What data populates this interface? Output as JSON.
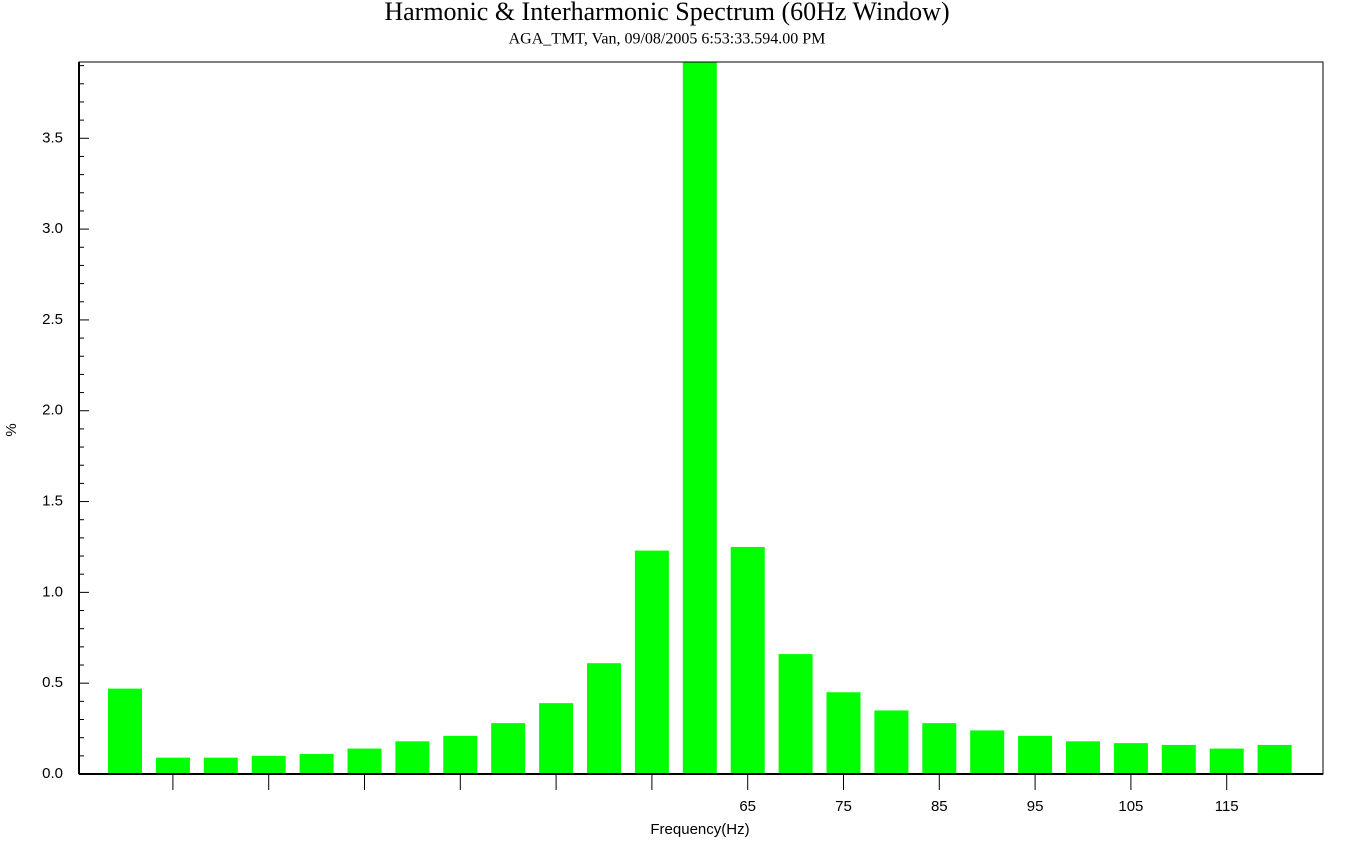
{
  "chart_data": {
    "type": "bar",
    "title": "Harmonic & Interharmonic Spectrum (60Hz Window)",
    "subtitle": "AGA_TMT, Van, 09/08/2005 6:53:33.594.00 PM",
    "x_label": "Frequency(Hz)",
    "y_label": "%",
    "categories": [
      null,
      null,
      null,
      null,
      null,
      null,
      null,
      null,
      null,
      null,
      null,
      null,
      null,
      "65",
      null,
      "75",
      null,
      "85",
      null,
      "95",
      null,
      "105",
      null,
      "115",
      null
    ],
    "values": [
      0.47,
      0.09,
      0.09,
      0.1,
      0.11,
      0.14,
      0.18,
      0.21,
      0.28,
      0.39,
      0.61,
      1.23,
      3.92,
      1.25,
      0.66,
      0.45,
      0.35,
      0.28,
      0.24,
      0.21,
      0.18,
      0.17,
      0.16,
      0.14,
      0.16
    ],
    "color": "#00ff00",
    "ylim": [
      0,
      3.92
    ],
    "yticks": [
      {
        "value": 0,
        "label": "0.0"
      },
      0.5,
      {
        "value": 1,
        "label": "1.0"
      },
      1.5,
      {
        "value": 2,
        "label": "2.0"
      },
      2.5,
      {
        "value": 3,
        "label": "3.0"
      },
      3.5
    ],
    "grid": false
  }
}
